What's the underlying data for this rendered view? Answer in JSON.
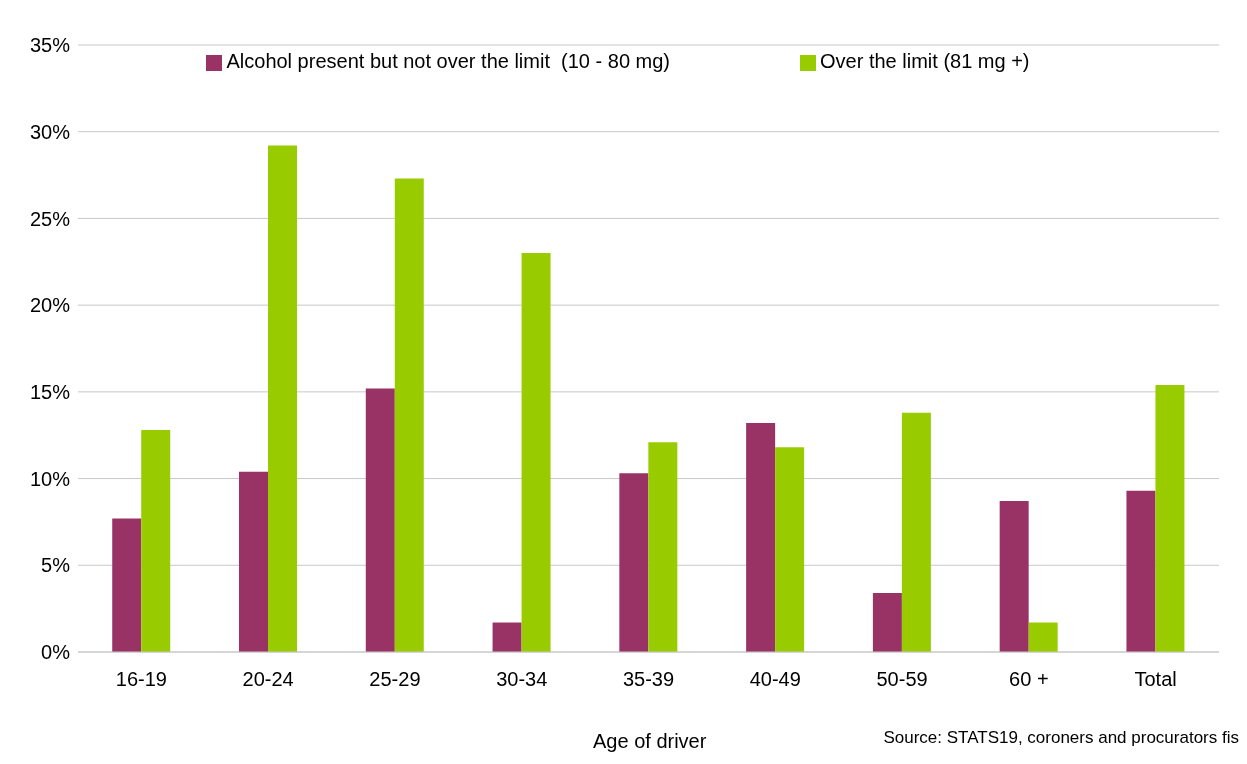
{
  "chart_data": {
    "type": "bar",
    "xlabel": "Age of driver",
    "annotations": [
      "Source: STATS19, coroners and procurators fis"
    ],
    "categories": [
      "16-19",
      "20-24",
      "25-29",
      "30-34",
      "35-39",
      "40-49",
      "50-59",
      "60 +",
      "Total"
    ],
    "series": [
      {
        "name": "Alcohol present but not over the limit  (10 - 80 mg)",
        "color": "#993366",
        "values": [
          7.7,
          10.4,
          15.2,
          1.7,
          10.3,
          13.2,
          3.4,
          8.7,
          9.3
        ]
      },
      {
        "name": "Over the limit (81 mg +)",
        "color": "#99cc00",
        "values": [
          12.8,
          29.2,
          27.3,
          23.0,
          12.1,
          11.8,
          13.8,
          1.7,
          15.4
        ]
      }
    ],
    "ylim": [
      0,
      35
    ],
    "yticks": [
      {
        "value": 0,
        "label": "0%"
      },
      {
        "value": 5,
        "label": "5%"
      },
      {
        "value": 10,
        "label": "10%"
      },
      {
        "value": 15,
        "label": "15%"
      },
      {
        "value": 20,
        "label": "20%"
      },
      {
        "value": 25,
        "label": "25%"
      },
      {
        "value": 30,
        "label": "30%"
      },
      {
        "value": 35,
        "label": "35%"
      }
    ],
    "grid": "y",
    "legend": "top"
  }
}
